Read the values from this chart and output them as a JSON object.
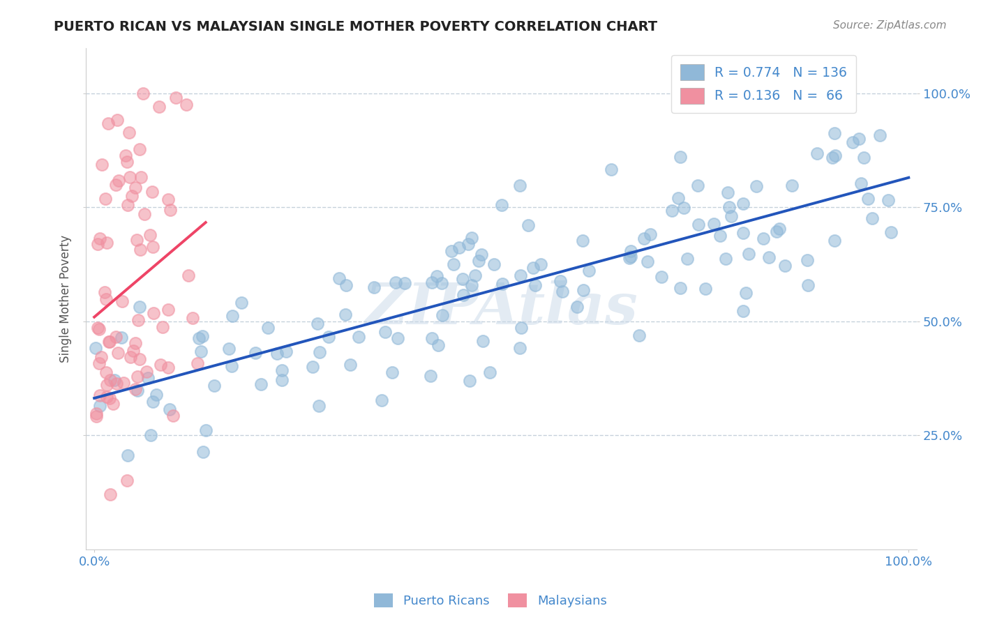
{
  "title": "PUERTO RICAN VS MALAYSIAN SINGLE MOTHER POVERTY CORRELATION CHART",
  "source": "Source: ZipAtlas.com",
  "ylabel": "Single Mother Poverty",
  "ytick_labels": [
    "25.0%",
    "50.0%",
    "75.0%",
    "100.0%"
  ],
  "ytick_positions": [
    0.25,
    0.5,
    0.75,
    1.0
  ],
  "xtick_labels": [
    "0.0%",
    "100.0%"
  ],
  "xtick_positions": [
    0.0,
    1.0
  ],
  "legend_blue_text": "R = 0.774   N = 136",
  "legend_pink_text": "R = 0.136   N =  66",
  "legend_bottom": [
    "Puerto Ricans",
    "Malaysians"
  ],
  "blue_scatter_color": "#90b8d8",
  "pink_scatter_color": "#f090a0",
  "blue_line_color": "#2255bb",
  "pink_line_color": "#ee4466",
  "dashed_line_color": "#bbbbbb",
  "grid_color": "#c0ccd8",
  "background_color": "#ffffff",
  "title_color": "#222222",
  "source_color": "#888888",
  "axis_tick_color": "#4488cc",
  "ylabel_color": "#555555",
  "watermark_color": "#c8d8e8",
  "legend_text_color": "#4488cc",
  "blue_R": 0.774,
  "blue_N": 136,
  "pink_R": 0.136,
  "pink_N": 66,
  "watermark": "ZIPAtlas"
}
